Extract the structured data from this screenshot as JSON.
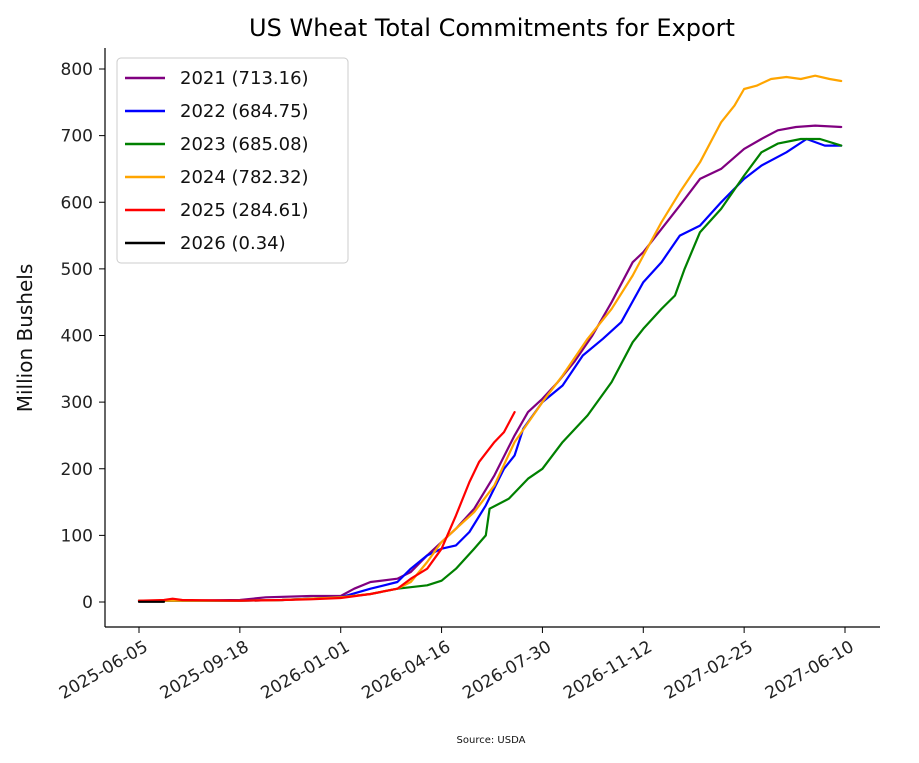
{
  "chart_data": {
    "type": "line",
    "title": "US Wheat Total Commitments for Export",
    "xlabel": "",
    "ylabel": "Million Bushels",
    "source": "Source: USDA",
    "x_ticks": [
      "2025-06-05",
      "2025-09-18",
      "2026-01-01",
      "2026-04-16",
      "2026-07-30",
      "2026-11-12",
      "2027-02-25",
      "2027-06-10"
    ],
    "y_ticks": [
      0,
      100,
      200,
      300,
      400,
      500,
      600,
      700,
      800
    ],
    "xlim": [
      "2025-05-24",
      "2027-06-46"
    ],
    "ylim": [
      -38,
      830
    ],
    "grid": false,
    "legend_position": "top-left",
    "series": [
      {
        "name": "2021 (713.16)",
        "color": "#800080",
        "points": [
          [
            "2025-06-05",
            2
          ],
          [
            "2025-07-15",
            2
          ],
          [
            "2025-09-18",
            3
          ],
          [
            "2025-10-15",
            7
          ],
          [
            "2025-12-01",
            9
          ],
          [
            "2026-01-01",
            9
          ],
          [
            "2026-01-15",
            20
          ],
          [
            "2026-02-01",
            30
          ],
          [
            "2026-03-01",
            35
          ],
          [
            "2026-03-15",
            45
          ],
          [
            "2026-04-01",
            70
          ],
          [
            "2026-04-16",
            90
          ],
          [
            "2026-05-01",
            110
          ],
          [
            "2026-05-20",
            140
          ],
          [
            "2026-06-10",
            190
          ],
          [
            "2026-07-01",
            250
          ],
          [
            "2026-07-15",
            285
          ],
          [
            "2026-07-30",
            305
          ],
          [
            "2026-08-15",
            330
          ],
          [
            "2026-09-01",
            360
          ],
          [
            "2026-09-20",
            400
          ],
          [
            "2026-10-10",
            450
          ],
          [
            "2026-11-01",
            510
          ],
          [
            "2026-11-12",
            525
          ],
          [
            "2026-12-01",
            560
          ],
          [
            "2026-12-20",
            595
          ],
          [
            "2027-01-10",
            635
          ],
          [
            "2027-02-01",
            650
          ],
          [
            "2027-02-25",
            680
          ],
          [
            "2027-03-15",
            695
          ],
          [
            "2027-04-01",
            708
          ],
          [
            "2027-04-20",
            713
          ],
          [
            "2027-05-10",
            715
          ],
          [
            "2027-06-06",
            713
          ]
        ]
      },
      {
        "name": "2022 (684.75)",
        "color": "#0000ff",
        "points": [
          [
            "2025-06-05",
            2
          ],
          [
            "2025-07-15",
            2
          ],
          [
            "2025-09-18",
            2
          ],
          [
            "2025-11-01",
            3
          ],
          [
            "2025-12-01",
            5
          ],
          [
            "2026-01-01",
            7
          ],
          [
            "2026-02-01",
            20
          ],
          [
            "2026-03-01",
            30
          ],
          [
            "2026-03-15",
            50
          ],
          [
            "2026-04-01",
            70
          ],
          [
            "2026-04-16",
            80
          ],
          [
            "2026-05-01",
            85
          ],
          [
            "2026-05-15",
            105
          ],
          [
            "2026-06-01",
            145
          ],
          [
            "2026-06-20",
            200
          ],
          [
            "2026-07-01",
            220
          ],
          [
            "2026-07-10",
            260
          ],
          [
            "2026-07-30",
            300
          ],
          [
            "2026-08-20",
            325
          ],
          [
            "2026-09-10",
            370
          ],
          [
            "2026-10-01",
            395
          ],
          [
            "2026-10-20",
            420
          ],
          [
            "2026-11-12",
            480
          ],
          [
            "2026-12-01",
            510
          ],
          [
            "2026-12-20",
            550
          ],
          [
            "2027-01-10",
            565
          ],
          [
            "2027-02-01",
            600
          ],
          [
            "2027-02-25",
            635
          ],
          [
            "2027-03-15",
            655
          ],
          [
            "2027-04-10",
            675
          ],
          [
            "2027-05-01",
            695
          ],
          [
            "2027-05-20",
            685
          ],
          [
            "2027-06-06",
            685
          ]
        ]
      },
      {
        "name": "2023 (685.08)",
        "color": "#008000",
        "points": [
          [
            "2025-06-05",
            2
          ],
          [
            "2025-07-15",
            2
          ],
          [
            "2025-09-18",
            2
          ],
          [
            "2025-11-01",
            3
          ],
          [
            "2025-12-01",
            5
          ],
          [
            "2026-01-01",
            7
          ],
          [
            "2026-02-01",
            12
          ],
          [
            "2026-03-01",
            20
          ],
          [
            "2026-04-01",
            25
          ],
          [
            "2026-04-16",
            32
          ],
          [
            "2026-05-01",
            50
          ],
          [
            "2026-05-20",
            80
          ],
          [
            "2026-06-01",
            100
          ],
          [
            "2026-06-05",
            140
          ],
          [
            "2026-06-25",
            155
          ],
          [
            "2026-07-15",
            185
          ],
          [
            "2026-07-30",
            200
          ],
          [
            "2026-08-20",
            240
          ],
          [
            "2026-09-15",
            280
          ],
          [
            "2026-10-10",
            330
          ],
          [
            "2026-11-01",
            390
          ],
          [
            "2026-11-12",
            410
          ],
          [
            "2026-12-01",
            440
          ],
          [
            "2026-12-15",
            460
          ],
          [
            "2026-12-25",
            500
          ],
          [
            "2027-01-10",
            555
          ],
          [
            "2027-02-01",
            590
          ],
          [
            "2027-02-25",
            640
          ],
          [
            "2027-03-15",
            675
          ],
          [
            "2027-04-01",
            688
          ],
          [
            "2027-04-25",
            695
          ],
          [
            "2027-05-15",
            695
          ],
          [
            "2027-06-06",
            685
          ]
        ]
      },
      {
        "name": "2024 (782.32)",
        "color": "#ffa500",
        "points": [
          [
            "2025-06-05",
            2
          ],
          [
            "2025-07-15",
            2
          ],
          [
            "2025-09-18",
            2
          ],
          [
            "2025-11-01",
            3
          ],
          [
            "2025-12-01",
            5
          ],
          [
            "2026-01-01",
            7
          ],
          [
            "2026-02-01",
            12
          ],
          [
            "2026-03-01",
            20
          ],
          [
            "2026-03-15",
            30
          ],
          [
            "2026-04-01",
            60
          ],
          [
            "2026-04-16",
            90
          ],
          [
            "2026-05-01",
            110
          ],
          [
            "2026-05-20",
            135
          ],
          [
            "2026-06-10",
            175
          ],
          [
            "2026-07-01",
            240
          ],
          [
            "2026-07-30",
            300
          ],
          [
            "2026-08-20",
            340
          ],
          [
            "2026-09-15",
            395
          ],
          [
            "2026-10-10",
            440
          ],
          [
            "2026-11-01",
            490
          ],
          [
            "2026-11-12",
            520
          ],
          [
            "2026-12-01",
            570
          ],
          [
            "2026-12-20",
            615
          ],
          [
            "2027-01-10",
            660
          ],
          [
            "2027-02-01",
            720
          ],
          [
            "2027-02-15",
            745
          ],
          [
            "2027-02-25",
            770
          ],
          [
            "2027-03-10",
            775
          ],
          [
            "2027-03-25",
            785
          ],
          [
            "2027-04-10",
            788
          ],
          [
            "2027-04-25",
            785
          ],
          [
            "2027-05-10",
            790
          ],
          [
            "2027-05-25",
            785
          ],
          [
            "2027-06-06",
            782
          ]
        ]
      },
      {
        "name": "2025 (284.61)",
        "color": "#ff0000",
        "points": [
          [
            "2025-06-05",
            2
          ],
          [
            "2025-07-01",
            3
          ],
          [
            "2025-07-10",
            5
          ],
          [
            "2025-07-20",
            3
          ],
          [
            "2025-09-18",
            2
          ],
          [
            "2025-11-01",
            3
          ],
          [
            "2025-12-01",
            4
          ],
          [
            "2026-01-01",
            6
          ],
          [
            "2026-02-01",
            12
          ],
          [
            "2026-03-01",
            20
          ],
          [
            "2026-03-15",
            35
          ],
          [
            "2026-04-01",
            50
          ],
          [
            "2026-04-16",
            80
          ],
          [
            "2026-05-01",
            130
          ],
          [
            "2026-05-15",
            180
          ],
          [
            "2026-05-25",
            210
          ],
          [
            "2026-06-10",
            240
          ],
          [
            "2026-06-20",
            255
          ],
          [
            "2026-07-01",
            285
          ]
        ]
      },
      {
        "name": "2026 (0.34)",
        "color": "#000000",
        "points": [
          [
            "2025-06-05",
            0.3
          ],
          [
            "2025-07-01",
            0.34
          ]
        ]
      }
    ]
  }
}
